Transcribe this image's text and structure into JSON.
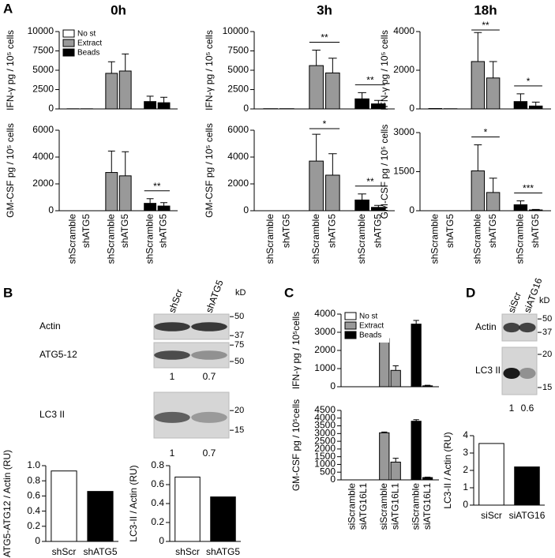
{
  "panel_labels": [
    "A",
    "B",
    "C",
    "D"
  ],
  "chart_data": [
    {
      "type": "bar",
      "title": "0h",
      "ylabel": "IFN-γ pg / 10⁵ cells",
      "categories": [
        null,
        null,
        null,
        null,
        null,
        null
      ],
      "series": [
        {
          "name": "No st",
          "color": "#ffffff",
          "values": [
            20,
            20,
            null,
            null,
            null,
            null
          ],
          "errors": [
            null,
            null,
            null,
            null,
            null,
            null
          ]
        },
        {
          "name": "Extract",
          "color": "#999999",
          "values": [
            null,
            null,
            4600,
            4900,
            null,
            null
          ],
          "errors": [
            null,
            null,
            1500,
            2200,
            null,
            null
          ]
        },
        {
          "name": "Beads",
          "color": "#000000",
          "values": [
            null,
            null,
            null,
            null,
            950,
            800
          ],
          "errors": [
            null,
            null,
            null,
            null,
            700,
            700
          ]
        }
      ],
      "ylim": [
        0,
        10000
      ],
      "yticks": [
        0,
        2500,
        5000,
        7500,
        10000
      ],
      "annotations": [],
      "legend": "upper left"
    },
    {
      "type": "bar",
      "ylabel": "GM-CSF pg / 10⁵ cells",
      "categories": [
        "shScramble",
        "shATG5",
        "shScramble",
        "shATG5",
        "shScramble",
        "shATG5"
      ],
      "series": [
        {
          "color": "#ffffff",
          "values": [
            0,
            0,
            null,
            null,
            null,
            null
          ],
          "errors": [
            null,
            null,
            null,
            null,
            null,
            null
          ]
        },
        {
          "color": "#999999",
          "values": [
            null,
            null,
            2850,
            2600,
            null,
            null
          ],
          "errors": [
            null,
            null,
            1600,
            1800,
            null,
            null
          ]
        },
        {
          "color": "#000000",
          "values": [
            null,
            null,
            null,
            null,
            550,
            350
          ],
          "errors": [
            null,
            null,
            null,
            null,
            350,
            250
          ]
        }
      ],
      "ylim": [
        0,
        6000
      ],
      "yticks": [
        0,
        2000,
        4000,
        6000
      ],
      "annotations": [
        {
          "text": "**",
          "categories": [
            4,
            5
          ]
        }
      ]
    },
    {
      "type": "bar",
      "title": "3h",
      "ylabel": "IFN-γ pg / 10⁵ cells",
      "categories": [
        null,
        null,
        null,
        null,
        null,
        null
      ],
      "series": [
        {
          "color": "#ffffff",
          "values": [
            30,
            30,
            null,
            null,
            null,
            null
          ],
          "errors": [
            null,
            null,
            null,
            null,
            null,
            null
          ]
        },
        {
          "color": "#999999",
          "values": [
            null,
            null,
            5600,
            4650,
            null,
            null
          ],
          "errors": [
            null,
            null,
            2000,
            1900,
            null,
            null
          ]
        },
        {
          "color": "#000000",
          "values": [
            null,
            null,
            null,
            null,
            1300,
            650
          ],
          "errors": [
            null,
            null,
            null,
            null,
            800,
            450
          ]
        }
      ],
      "ylim": [
        0,
        10000
      ],
      "yticks": [
        0,
        2500,
        5000,
        7500,
        10000
      ],
      "annotations": [
        {
          "text": "**",
          "categories": [
            2,
            3
          ]
        },
        {
          "text": "**",
          "categories": [
            4,
            5
          ]
        }
      ]
    },
    {
      "type": "bar",
      "ylabel": "GM-CSF pg / 10⁵ cells",
      "categories": [
        "shScramble",
        "shATG5",
        "shScramble",
        "shATG5",
        "shScramble",
        "shATG5"
      ],
      "series": [
        {
          "color": "#ffffff",
          "values": [
            0,
            0,
            null,
            null,
            null,
            null
          ],
          "errors": [
            null,
            null,
            null,
            null,
            null,
            null
          ]
        },
        {
          "color": "#999999",
          "values": [
            null,
            null,
            3700,
            2650,
            null,
            null
          ],
          "errors": [
            null,
            null,
            2000,
            1600,
            null,
            null
          ]
        },
        {
          "color": "#000000",
          "values": [
            null,
            null,
            null,
            null,
            800,
            250
          ],
          "errors": [
            null,
            null,
            null,
            null,
            450,
            150
          ]
        }
      ],
      "ylim": [
        0,
        6000
      ],
      "yticks": [
        0,
        2000,
        4000,
        6000
      ],
      "annotations": [
        {
          "text": "*",
          "categories": [
            2,
            3
          ]
        },
        {
          "text": "**",
          "categories": [
            4,
            5
          ]
        }
      ]
    },
    {
      "type": "bar",
      "title": "18h",
      "ylabel": "IFN-γ pg / 10⁵ cells",
      "categories": [
        null,
        null,
        null,
        null,
        null,
        null
      ],
      "series": [
        {
          "color": "#ffffff",
          "values": [
            20,
            10,
            null,
            null,
            null,
            null
          ],
          "errors": [
            null,
            null,
            null,
            null,
            null,
            null
          ]
        },
        {
          "color": "#999999",
          "values": [
            null,
            null,
            2450,
            1600,
            null,
            null
          ],
          "errors": [
            null,
            null,
            1500,
            850,
            null,
            null
          ]
        },
        {
          "color": "#000000",
          "values": [
            null,
            null,
            null,
            null,
            380,
            150
          ],
          "errors": [
            null,
            null,
            null,
            null,
            400,
            200
          ]
        }
      ],
      "ylim": [
        0,
        4000
      ],
      "yticks": [
        0,
        2000,
        4000
      ],
      "annotations": [
        {
          "text": "**",
          "categories": [
            2,
            3
          ]
        },
        {
          "text": "*",
          "categories": [
            4,
            5
          ]
        }
      ]
    },
    {
      "type": "bar",
      "ylabel": "GM-CSF pg / 10⁵ cells",
      "categories": [
        "shScramble",
        "shATG5",
        "shScramble",
        "shATG5",
        "shScramble",
        "shATG5"
      ],
      "series": [
        {
          "color": "#ffffff",
          "values": [
            0,
            0,
            null,
            null,
            null,
            null
          ],
          "errors": [
            null,
            null,
            null,
            null,
            null,
            null
          ]
        },
        {
          "color": "#999999",
          "values": [
            null,
            null,
            1530,
            700,
            null,
            null
          ],
          "errors": [
            null,
            null,
            1000,
            550,
            null,
            null
          ]
        },
        {
          "color": "#000000",
          "values": [
            null,
            null,
            null,
            null,
            230,
            30
          ],
          "errors": [
            null,
            null,
            null,
            null,
            150,
            20
          ]
        }
      ],
      "ylim": [
        0,
        3000
      ],
      "yticks": [
        0,
        1500,
        3000
      ],
      "annotations": [
        {
          "text": "*",
          "categories": [
            2,
            3
          ]
        },
        {
          "text": "***",
          "categories": [
            4,
            5
          ]
        }
      ]
    },
    {
      "type": "bar",
      "ylabel": "ATG5-ATG12 / Actin (RU)",
      "categories": [
        "shScr",
        "shATG5"
      ],
      "values": [
        0.93,
        0.66
      ],
      "colors": [
        "#ffffff",
        "#000000"
      ],
      "ylim": [
        0,
        1
      ],
      "yticks": [
        0,
        0.2,
        0.4,
        0.6,
        0.8,
        {
          "value": 1,
          "label": "1.0"
        }
      ]
    },
    {
      "type": "bar",
      "ylabel": "LC3-II / Actin (RU)",
      "categories": [
        "shScr",
        "shATG5"
      ],
      "values": [
        0.68,
        0.47
      ],
      "colors": [
        "#ffffff",
        "#000000"
      ],
      "ylim": [
        0,
        0.8
      ],
      "yticks": [
        0,
        0.2,
        0.4,
        0.6,
        0.8
      ]
    },
    {
      "type": "bar",
      "ylabel": "IFN-γ pg / 10⁵cells",
      "categories": [
        null,
        null,
        null,
        null,
        null,
        null
      ],
      "series": [
        {
          "name": "No st",
          "color": "#ffffff",
          "values": [
            0,
            0,
            null,
            null,
            null,
            null
          ],
          "errors": [
            null,
            null,
            null,
            null,
            null,
            null
          ]
        },
        {
          "name": "Extract",
          "color": "#999999",
          "values": [
            null,
            null,
            2650,
            900,
            null,
            null
          ],
          "errors": [
            null,
            null,
            150,
            250,
            null,
            null
          ]
        },
        {
          "name": "Beads",
          "color": "#000000",
          "values": [
            null,
            null,
            null,
            null,
            3450,
            50
          ],
          "errors": [
            null,
            null,
            null,
            null,
            200,
            30
          ]
        }
      ],
      "ylim": [
        0,
        4000
      ],
      "yticks": [
        0,
        1000,
        2000,
        3000,
        4000
      ],
      "annotations": [],
      "legend": "upper left"
    },
    {
      "type": "bar",
      "ylabel": "GM-CSF pg / 10⁵cells",
      "categories": [
        "siScramble",
        "siATG16L1",
        "siScramble",
        "siATG16L1",
        "siScramble",
        "siATG16L1"
      ],
      "series": [
        {
          "color": "#ffffff",
          "values": [
            0,
            0,
            null,
            null,
            null,
            null
          ],
          "errors": [
            null,
            null,
            null,
            null,
            null,
            null
          ]
        },
        {
          "color": "#999999",
          "values": [
            null,
            null,
            3050,
            1150,
            null,
            null
          ],
          "errors": [
            null,
            null,
            50,
            250,
            null,
            null
          ]
        },
        {
          "color": "#000000",
          "values": [
            null,
            null,
            null,
            null,
            3800,
            150
          ],
          "errors": [
            null,
            null,
            null,
            null,
            100,
            30
          ]
        }
      ],
      "ylim": [
        0,
        4500
      ],
      "yticks": [
        0,
        500,
        1000,
        1500,
        2000,
        2500,
        3000,
        3500,
        4000,
        4500
      ],
      "annotations": []
    },
    {
      "type": "bar",
      "ylabel": "LC3-II / Actin (RU)",
      "categories": [
        "siScr",
        "siATG16"
      ],
      "values": [
        3.55,
        2.2
      ],
      "colors": [
        "#ffffff",
        "#000000"
      ],
      "ylim": [
        0,
        4
      ],
      "yticks": [
        0,
        1,
        2,
        3,
        4
      ]
    }
  ],
  "blots": [
    {
      "columns": [
        "shScr",
        "shATG5"
      ],
      "unit": "kD",
      "rows": [
        {
          "label": "Actin",
          "markers": [
            50,
            37
          ]
        },
        {
          "label": "ATG5-12",
          "markers": [
            75,
            50
          ],
          "ratios": [
            1,
            0.7
          ]
        },
        {
          "label": "LC3 II",
          "markers": [
            20,
            15
          ],
          "ratios": [
            1,
            0.7
          ]
        }
      ]
    },
    {
      "columns": [
        "siScr",
        "siATG16"
      ],
      "unit": "kD",
      "rows": [
        {
          "label": "Actin",
          "markers": [
            50,
            37
          ]
        },
        {
          "label": "LC3 II",
          "markers": [
            20,
            15
          ],
          "ratios": [
            1,
            0.6
          ]
        }
      ]
    }
  ]
}
